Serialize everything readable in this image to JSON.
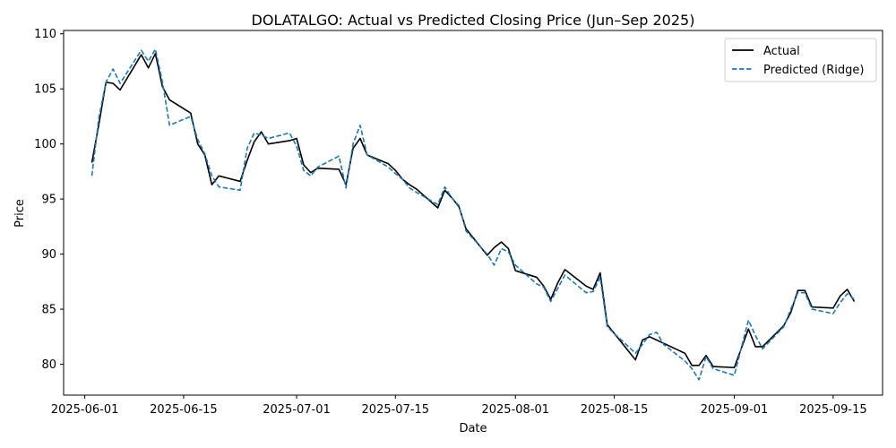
{
  "chart_data": {
    "type": "line",
    "title": "DOLATALGO: Actual vs Predicted Closing Price (Jun–Sep 2025)",
    "xlabel": "Date",
    "ylabel": "Price",
    "xlim": [
      "2025-05-29",
      "2025-09-22"
    ],
    "ylim": [
      77.2,
      110.3
    ],
    "x_ticks": [
      "2025-06-01",
      "2025-06-15",
      "2025-07-01",
      "2025-07-15",
      "2025-08-01",
      "2025-08-15",
      "2025-09-01",
      "2025-09-15"
    ],
    "y_ticks": [
      80,
      85,
      90,
      95,
      100,
      105,
      110
    ],
    "grid": false,
    "legend_position": "upper-right",
    "series": [
      {
        "name": "Actual",
        "color": "#000000",
        "style": "solid",
        "points": [
          [
            "2025-06-02",
            98.3
          ],
          [
            "2025-06-03",
            101.8
          ],
          [
            "2025-06-04",
            105.6
          ],
          [
            "2025-06-05",
            105.5
          ],
          [
            "2025-06-06",
            104.9
          ],
          [
            "2025-06-09",
            108.1
          ],
          [
            "2025-06-10",
            106.9
          ],
          [
            "2025-06-11",
            108.2
          ],
          [
            "2025-06-12",
            105.2
          ],
          [
            "2025-06-13",
            104.0
          ],
          [
            "2025-06-16",
            102.8
          ],
          [
            "2025-06-17",
            100.0
          ],
          [
            "2025-06-18",
            99.0
          ],
          [
            "2025-06-19",
            96.3
          ],
          [
            "2025-06-20",
            97.1
          ],
          [
            "2025-06-23",
            96.6
          ],
          [
            "2025-06-24",
            98.5
          ],
          [
            "2025-06-25",
            100.2
          ],
          [
            "2025-06-26",
            101.1
          ],
          [
            "2025-06-27",
            100.0
          ],
          [
            "2025-06-30",
            100.3
          ],
          [
            "2025-07-01",
            100.5
          ],
          [
            "2025-07-02",
            98.1
          ],
          [
            "2025-07-03",
            97.4
          ],
          [
            "2025-07-04",
            97.8
          ],
          [
            "2025-07-07",
            97.7
          ],
          [
            "2025-07-08",
            96.3
          ],
          [
            "2025-07-09",
            99.6
          ],
          [
            "2025-07-10",
            100.5
          ],
          [
            "2025-07-11",
            99.0
          ],
          [
            "2025-07-14",
            98.2
          ],
          [
            "2025-07-15",
            97.6
          ],
          [
            "2025-07-16",
            96.8
          ],
          [
            "2025-07-17",
            96.3
          ],
          [
            "2025-07-18",
            95.9
          ],
          [
            "2025-07-21",
            94.2
          ],
          [
            "2025-07-22",
            95.8
          ],
          [
            "2025-07-23",
            95.1
          ],
          [
            "2025-07-24",
            94.3
          ],
          [
            "2025-07-25",
            92.3
          ],
          [
            "2025-07-28",
            89.9
          ],
          [
            "2025-07-29",
            90.6
          ],
          [
            "2025-07-30",
            91.1
          ],
          [
            "2025-07-31",
            90.5
          ],
          [
            "2025-08-01",
            88.5
          ],
          [
            "2025-08-04",
            87.9
          ],
          [
            "2025-08-05",
            87.1
          ],
          [
            "2025-08-06",
            85.9
          ],
          [
            "2025-08-07",
            87.4
          ],
          [
            "2025-08-08",
            88.6
          ],
          [
            "2025-08-11",
            87.1
          ],
          [
            "2025-08-12",
            86.8
          ],
          [
            "2025-08-13",
            88.3
          ],
          [
            "2025-08-14",
            83.6
          ],
          [
            "2025-08-18",
            80.4
          ],
          [
            "2025-08-19",
            82.2
          ],
          [
            "2025-08-20",
            82.5
          ],
          [
            "2025-08-21",
            82.2
          ],
          [
            "2025-08-25",
            81.0
          ],
          [
            "2025-08-26",
            79.9
          ],
          [
            "2025-08-27",
            79.9
          ],
          [
            "2025-08-28",
            80.8
          ],
          [
            "2025-08-29",
            79.8
          ],
          [
            "2025-09-01",
            79.7
          ],
          [
            "2025-09-03",
            83.2
          ],
          [
            "2025-09-04",
            81.6
          ],
          [
            "2025-09-05",
            81.6
          ],
          [
            "2025-09-08",
            83.5
          ],
          [
            "2025-09-09",
            84.7
          ],
          [
            "2025-09-10",
            86.7
          ],
          [
            "2025-09-11",
            86.7
          ],
          [
            "2025-09-12",
            85.2
          ],
          [
            "2025-09-15",
            85.1
          ],
          [
            "2025-09-16",
            86.2
          ],
          [
            "2025-09-17",
            86.8
          ],
          [
            "2025-09-18",
            85.7
          ]
        ]
      },
      {
        "name": "Predicted (Ridge)",
        "color": "#1f77b4",
        "style": "dashed",
        "points": [
          [
            "2025-06-02",
            97.1
          ],
          [
            "2025-06-03",
            102.4
          ],
          [
            "2025-06-04",
            105.6
          ],
          [
            "2025-06-05",
            106.8
          ],
          [
            "2025-06-06",
            105.5
          ],
          [
            "2025-06-09",
            108.5
          ],
          [
            "2025-06-10",
            107.5
          ],
          [
            "2025-06-11",
            108.6
          ],
          [
            "2025-06-12",
            105.6
          ],
          [
            "2025-06-13",
            101.7
          ],
          [
            "2025-06-16",
            102.5
          ],
          [
            "2025-06-17",
            100.4
          ],
          [
            "2025-06-18",
            99.1
          ],
          [
            "2025-06-19",
            97.1
          ],
          [
            "2025-06-20",
            96.1
          ],
          [
            "2025-06-23",
            95.8
          ],
          [
            "2025-06-24",
            99.6
          ],
          [
            "2025-06-25",
            101.0
          ],
          [
            "2025-06-26",
            100.8
          ],
          [
            "2025-06-27",
            100.5
          ],
          [
            "2025-06-30",
            101.0
          ],
          [
            "2025-07-01",
            99.8
          ],
          [
            "2025-07-02",
            97.6
          ],
          [
            "2025-07-03",
            97.1
          ],
          [
            "2025-07-04",
            97.9
          ],
          [
            "2025-07-07",
            98.9
          ],
          [
            "2025-07-08",
            96.0
          ],
          [
            "2025-07-09",
            100.0
          ],
          [
            "2025-07-10",
            101.7
          ],
          [
            "2025-07-11",
            99.0
          ],
          [
            "2025-07-14",
            97.9
          ],
          [
            "2025-07-15",
            97.3
          ],
          [
            "2025-07-16",
            96.8
          ],
          [
            "2025-07-17",
            96.0
          ],
          [
            "2025-07-18",
            95.6
          ],
          [
            "2025-07-21",
            94.5
          ],
          [
            "2025-07-22",
            96.1
          ],
          [
            "2025-07-23",
            95.1
          ],
          [
            "2025-07-24",
            94.4
          ],
          [
            "2025-07-25",
            92.1
          ],
          [
            "2025-07-28",
            90.0
          ],
          [
            "2025-07-29",
            89.0
          ],
          [
            "2025-07-30",
            90.5
          ],
          [
            "2025-07-31",
            90.2
          ],
          [
            "2025-08-01",
            89.0
          ],
          [
            "2025-08-04",
            87.3
          ],
          [
            "2025-08-05",
            87.0
          ],
          [
            "2025-08-06",
            85.7
          ],
          [
            "2025-08-07",
            86.9
          ],
          [
            "2025-08-08",
            88.1
          ],
          [
            "2025-08-11",
            86.5
          ],
          [
            "2025-08-12",
            86.6
          ],
          [
            "2025-08-13",
            87.9
          ],
          [
            "2025-08-14",
            83.4
          ],
          [
            "2025-08-18",
            81.0
          ],
          [
            "2025-08-19",
            81.8
          ],
          [
            "2025-08-20",
            82.7
          ],
          [
            "2025-08-21",
            82.9
          ],
          [
            "2025-08-22",
            81.8
          ],
          [
            "2025-08-25",
            80.3
          ],
          [
            "2025-08-26",
            79.6
          ],
          [
            "2025-08-27",
            78.6
          ],
          [
            "2025-08-28",
            80.7
          ],
          [
            "2025-08-29",
            79.6
          ],
          [
            "2025-09-01",
            79.0
          ],
          [
            "2025-09-03",
            84.0
          ],
          [
            "2025-09-04",
            82.6
          ],
          [
            "2025-09-05",
            81.4
          ],
          [
            "2025-09-08",
            83.4
          ],
          [
            "2025-09-09",
            85.0
          ],
          [
            "2025-09-10",
            86.5
          ],
          [
            "2025-09-11",
            86.5
          ],
          [
            "2025-09-12",
            85.0
          ],
          [
            "2025-09-15",
            84.6
          ],
          [
            "2025-09-16",
            85.6
          ],
          [
            "2025-09-17",
            86.4
          ],
          [
            "2025-09-18",
            85.9
          ]
        ]
      }
    ]
  }
}
